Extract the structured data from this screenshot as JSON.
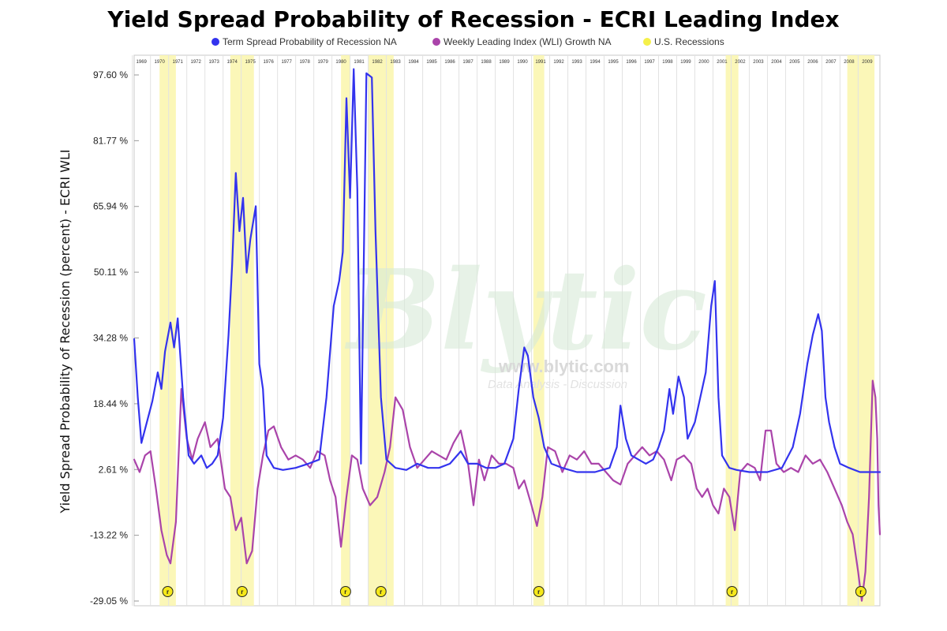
{
  "chart_data": {
    "type": "line",
    "title": "Yield Spread Probability of Recession - ECRI Leading Index",
    "ylabel": "Yield Spread Probability of Recession (percent) - ECRI WLI",
    "xlabel": "",
    "ylim": [
      -29.05,
      97.6
    ],
    "y_ticks": [
      "97.60 %",
      "81.77 %",
      "65.94 %",
      "50.11 %",
      "34.28 %",
      "18.44 %",
      "2.61 %",
      "-13.22 %",
      "-29.05 %"
    ],
    "y_tick_values": [
      97.6,
      81.77,
      65.94,
      50.11,
      34.28,
      18.44,
      2.61,
      -13.22,
      -29.05
    ],
    "xlim": [
      1968.6,
      2009.7
    ],
    "year_ticks": [
      1969,
      1970,
      1971,
      1972,
      1973,
      1974,
      1975,
      1976,
      1977,
      1978,
      1979,
      1980,
      1981,
      1982,
      1983,
      1984,
      1985,
      1986,
      1987,
      1988,
      1989,
      1990,
      1991,
      1992,
      1993,
      1994,
      1995,
      1996,
      1997,
      1998,
      1999,
      2000,
      2001,
      2002,
      2003,
      2004,
      2005,
      2006,
      2007,
      2008,
      2009
    ],
    "grid": true,
    "legend_position": "top",
    "legend": [
      {
        "name": "Term Spread Probability of Recession NA",
        "color": "#3333ee"
      },
      {
        "name": "Weekly Leading Index (WLI) Growth NA",
        "color": "#aa44aa"
      },
      {
        "name": "U.S. Recessions",
        "color": "#f5f04a"
      }
    ],
    "recessions": [
      [
        1970.0,
        1970.9
      ],
      [
        1973.9,
        1975.2
      ],
      [
        1980.0,
        1980.5
      ],
      [
        1981.5,
        1982.9
      ],
      [
        1990.6,
        1991.2
      ],
      [
        2001.2,
        2001.9
      ],
      [
        2007.9,
        2009.4
      ]
    ],
    "recession_marker": "r",
    "series": [
      {
        "name": "Term Spread Probability of Recession NA",
        "color": "#3333ee",
        "points": [
          [
            1968.6,
            34
          ],
          [
            1968.8,
            20
          ],
          [
            1969.0,
            9
          ],
          [
            1969.3,
            14
          ],
          [
            1969.6,
            19
          ],
          [
            1969.9,
            26
          ],
          [
            1970.1,
            22
          ],
          [
            1970.3,
            31
          ],
          [
            1970.6,
            38
          ],
          [
            1970.8,
            32
          ],
          [
            1971.0,
            39
          ],
          [
            1971.3,
            20
          ],
          [
            1971.6,
            6
          ],
          [
            1971.9,
            4
          ],
          [
            1972.3,
            6
          ],
          [
            1972.6,
            3
          ],
          [
            1972.9,
            4
          ],
          [
            1973.2,
            6
          ],
          [
            1973.5,
            15
          ],
          [
            1973.8,
            35
          ],
          [
            1974.0,
            52
          ],
          [
            1974.2,
            74
          ],
          [
            1974.4,
            60
          ],
          [
            1974.6,
            68
          ],
          [
            1974.8,
            50
          ],
          [
            1975.0,
            58
          ],
          [
            1975.3,
            66
          ],
          [
            1975.5,
            28
          ],
          [
            1975.7,
            22
          ],
          [
            1975.9,
            6
          ],
          [
            1976.3,
            3
          ],
          [
            1976.8,
            2.5
          ],
          [
            1977.5,
            3
          ],
          [
            1978.2,
            4
          ],
          [
            1978.8,
            5
          ],
          [
            1979.2,
            20
          ],
          [
            1979.6,
            42
          ],
          [
            1979.9,
            48
          ],
          [
            1980.1,
            55
          ],
          [
            1980.3,
            92
          ],
          [
            1980.5,
            68
          ],
          [
            1980.7,
            99
          ],
          [
            1980.9,
            70
          ],
          [
            1981.1,
            4
          ],
          [
            1981.4,
            98
          ],
          [
            1981.7,
            97
          ],
          [
            1981.9,
            60
          ],
          [
            1982.2,
            20
          ],
          [
            1982.5,
            5
          ],
          [
            1983.0,
            3
          ],
          [
            1983.6,
            2.5
          ],
          [
            1984.2,
            4
          ],
          [
            1984.8,
            3
          ],
          [
            1985.4,
            3
          ],
          [
            1986.0,
            4
          ],
          [
            1986.6,
            7
          ],
          [
            1987.0,
            4
          ],
          [
            1987.5,
            4
          ],
          [
            1988.0,
            3
          ],
          [
            1988.5,
            3
          ],
          [
            1989.0,
            4
          ],
          [
            1989.5,
            10
          ],
          [
            1989.8,
            22
          ],
          [
            1990.1,
            32
          ],
          [
            1990.3,
            30
          ],
          [
            1990.6,
            20
          ],
          [
            1990.9,
            15
          ],
          [
            1991.2,
            8
          ],
          [
            1991.6,
            4
          ],
          [
            1992.2,
            3
          ],
          [
            1993.0,
            2
          ],
          [
            1994.0,
            2
          ],
          [
            1994.8,
            3
          ],
          [
            1995.2,
            8
          ],
          [
            1995.4,
            18
          ],
          [
            1995.7,
            10
          ],
          [
            1996.0,
            6
          ],
          [
            1996.4,
            5
          ],
          [
            1996.8,
            4
          ],
          [
            1997.2,
            5
          ],
          [
            1997.5,
            8
          ],
          [
            1997.8,
            12
          ],
          [
            1998.1,
            22
          ],
          [
            1998.3,
            16
          ],
          [
            1998.6,
            25
          ],
          [
            1998.9,
            20
          ],
          [
            1999.1,
            10
          ],
          [
            1999.5,
            14
          ],
          [
            1999.8,
            20
          ],
          [
            2000.1,
            26
          ],
          [
            2000.4,
            42
          ],
          [
            2000.6,
            48
          ],
          [
            2000.8,
            20
          ],
          [
            2001.0,
            6
          ],
          [
            2001.4,
            3
          ],
          [
            2001.8,
            2.5
          ],
          [
            2002.5,
            2
          ],
          [
            2003.5,
            2
          ],
          [
            2004.3,
            3
          ],
          [
            2004.9,
            8
          ],
          [
            2005.3,
            16
          ],
          [
            2005.7,
            28
          ],
          [
            2006.0,
            35
          ],
          [
            2006.3,
            40
          ],
          [
            2006.5,
            36
          ],
          [
            2006.7,
            20
          ],
          [
            2006.9,
            14
          ],
          [
            2007.2,
            8
          ],
          [
            2007.5,
            4
          ],
          [
            2008.0,
            3
          ],
          [
            2008.6,
            2
          ],
          [
            2009.2,
            2
          ],
          [
            2009.7,
            2
          ]
        ]
      },
      {
        "name": "Weekly Leading Index (WLI) Growth NA",
        "color": "#aa44aa",
        "points": [
          [
            1968.6,
            5
          ],
          [
            1968.9,
            2
          ],
          [
            1969.2,
            6
          ],
          [
            1969.5,
            7
          ],
          [
            1969.8,
            -2
          ],
          [
            1970.1,
            -12
          ],
          [
            1970.4,
            -18
          ],
          [
            1970.6,
            -20
          ],
          [
            1970.9,
            -10
          ],
          [
            1971.2,
            22
          ],
          [
            1971.5,
            10
          ],
          [
            1971.8,
            5
          ],
          [
            1972.1,
            10
          ],
          [
            1972.5,
            14
          ],
          [
            1972.8,
            8
          ],
          [
            1973.2,
            10
          ],
          [
            1973.6,
            -2
          ],
          [
            1973.9,
            -4
          ],
          [
            1974.2,
            -12
          ],
          [
            1974.5,
            -9
          ],
          [
            1974.8,
            -20
          ],
          [
            1975.1,
            -17
          ],
          [
            1975.4,
            -2
          ],
          [
            1975.7,
            6
          ],
          [
            1976.0,
            12
          ],
          [
            1976.3,
            13
          ],
          [
            1976.7,
            8
          ],
          [
            1977.1,
            5
          ],
          [
            1977.5,
            6
          ],
          [
            1977.9,
            5
          ],
          [
            1978.3,
            3
          ],
          [
            1978.7,
            7
          ],
          [
            1979.1,
            6
          ],
          [
            1979.4,
            0
          ],
          [
            1979.7,
            -4
          ],
          [
            1980.0,
            -16
          ],
          [
            1980.3,
            -4
          ],
          [
            1980.6,
            6
          ],
          [
            1980.9,
            5
          ],
          [
            1981.2,
            -2
          ],
          [
            1981.6,
            -6
          ],
          [
            1982.0,
            -4
          ],
          [
            1982.4,
            2
          ],
          [
            1982.7,
            8
          ],
          [
            1983.0,
            20
          ],
          [
            1983.4,
            17
          ],
          [
            1983.8,
            8
          ],
          [
            1984.2,
            3
          ],
          [
            1984.6,
            5
          ],
          [
            1985.0,
            7
          ],
          [
            1985.4,
            6
          ],
          [
            1985.8,
            5
          ],
          [
            1986.2,
            9
          ],
          [
            1986.6,
            12
          ],
          [
            1987.0,
            4
          ],
          [
            1987.3,
            -6
          ],
          [
            1987.6,
            5
          ],
          [
            1987.9,
            0
          ],
          [
            1988.3,
            6
          ],
          [
            1988.7,
            4
          ],
          [
            1989.1,
            4
          ],
          [
            1989.5,
            3
          ],
          [
            1989.8,
            -2
          ],
          [
            1990.1,
            0
          ],
          [
            1990.5,
            -6
          ],
          [
            1990.8,
            -11
          ],
          [
            1991.1,
            -4
          ],
          [
            1991.4,
            8
          ],
          [
            1991.8,
            7
          ],
          [
            1992.2,
            2
          ],
          [
            1992.6,
            6
          ],
          [
            1993.0,
            5
          ],
          [
            1993.4,
            7
          ],
          [
            1993.8,
            4
          ],
          [
            1994.2,
            4
          ],
          [
            1994.6,
            2
          ],
          [
            1995.0,
            0
          ],
          [
            1995.4,
            -1
          ],
          [
            1995.8,
            4
          ],
          [
            1996.2,
            6
          ],
          [
            1996.6,
            8
          ],
          [
            1997.0,
            6
          ],
          [
            1997.4,
            7
          ],
          [
            1997.8,
            5
          ],
          [
            1998.2,
            0
          ],
          [
            1998.5,
            5
          ],
          [
            1998.9,
            6
          ],
          [
            1999.3,
            4
          ],
          [
            1999.6,
            -2
          ],
          [
            1999.9,
            -4
          ],
          [
            2000.2,
            -2
          ],
          [
            2000.5,
            -6
          ],
          [
            2000.8,
            -8
          ],
          [
            2001.1,
            -2
          ],
          [
            2001.4,
            -4
          ],
          [
            2001.7,
            -12
          ],
          [
            2002.0,
            2
          ],
          [
            2002.4,
            4
          ],
          [
            2002.8,
            3
          ],
          [
            2003.1,
            0
          ],
          [
            2003.4,
            12
          ],
          [
            2003.7,
            12
          ],
          [
            2004.0,
            4
          ],
          [
            2004.4,
            2
          ],
          [
            2004.8,
            3
          ],
          [
            2005.2,
            2
          ],
          [
            2005.6,
            6
          ],
          [
            2006.0,
            4
          ],
          [
            2006.4,
            5
          ],
          [
            2006.8,
            2
          ],
          [
            2007.2,
            -2
          ],
          [
            2007.6,
            -6
          ],
          [
            2007.9,
            -10
          ],
          [
            2008.2,
            -13
          ],
          [
            2008.5,
            -22
          ],
          [
            2008.7,
            -29
          ],
          [
            2008.9,
            -22
          ],
          [
            2009.1,
            -4
          ],
          [
            2009.3,
            24
          ],
          [
            2009.45,
            20
          ],
          [
            2009.55,
            10
          ],
          [
            2009.62,
            -6
          ],
          [
            2009.7,
            -13
          ]
        ]
      }
    ]
  }
}
